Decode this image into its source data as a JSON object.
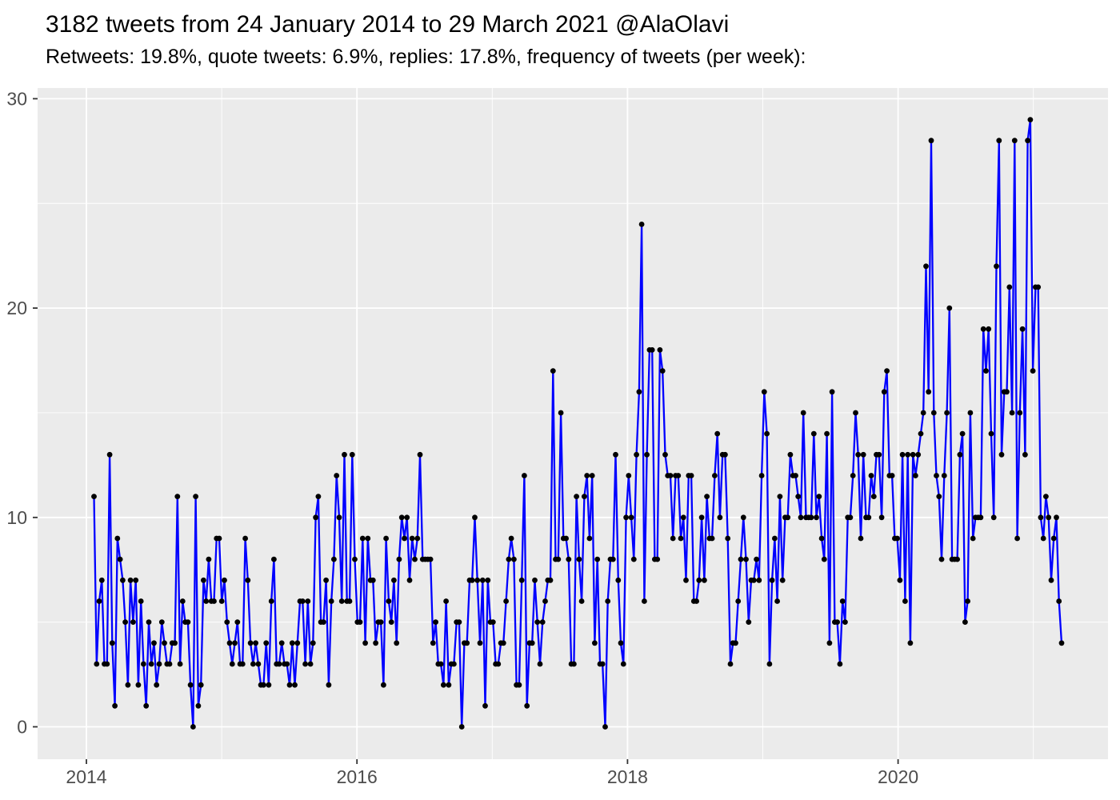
{
  "header": {
    "title": "3182 tweets from 24 January 2014 to 29 March 2021 @AlaOlavi",
    "subtitle": "Retweets: 19.8%, quote tweets: 6.9%, replies: 17.8%, frequency of tweets (per week):"
  },
  "chart_data": {
    "type": "line",
    "title": "3182 tweets from 24 January 2014 to 29 March 2021 @AlaOlavi",
    "subtitle": "Retweets: 19.8%, quote tweets: 6.9%, replies: 17.8%, frequency of tweets (per week):",
    "xlabel": "",
    "ylabel": "",
    "x_axis": {
      "tick_labels": [
        "2014",
        "2016",
        "2018",
        "2020"
      ],
      "tick_years": [
        2014,
        2016,
        2018,
        2020
      ],
      "minor_years": [
        2015,
        2017,
        2019,
        2021
      ],
      "range_years": [
        2013.64,
        2021.56
      ]
    },
    "y_axis": {
      "tick_labels": [
        "0",
        "10",
        "20",
        "30"
      ],
      "tick_values": [
        0,
        10,
        20,
        30
      ],
      "minor_values": [
        5,
        15,
        25
      ],
      "ylim": [
        -1.5,
        31
      ]
    },
    "grid": "on",
    "legend": "none",
    "style": {
      "panel_bg": "#EBEBEB",
      "grid_color": "#FFFFFF",
      "line_color": "#0000FF",
      "point_color": "#000000",
      "tick_label_color": "#4D4D4D",
      "tick_mark_color": "#333333"
    },
    "series": [
      {
        "name": "tweets per week",
        "start": "2014-01-24",
        "end": "2021-03-29",
        "interval": "week",
        "values": [
          11,
          3,
          6,
          7,
          3,
          3,
          13,
          4,
          1,
          9,
          8,
          7,
          5,
          2,
          7,
          5,
          7,
          2,
          6,
          3,
          1,
          5,
          3,
          4,
          2,
          3,
          5,
          4,
          3,
          3,
          4,
          4,
          11,
          3,
          6,
          5,
          5,
          2,
          0,
          11,
          1,
          2,
          7,
          6,
          8,
          6,
          6,
          9,
          9,
          6,
          7,
          5,
          4,
          3,
          4,
          5,
          3,
          3,
          9,
          7,
          4,
          3,
          4,
          3,
          2,
          2,
          4,
          2,
          6,
          8,
          3,
          3,
          4,
          3,
          3,
          2,
          4,
          2,
          4,
          6,
          6,
          3,
          6,
          3,
          4,
          10,
          11,
          5,
          5,
          7,
          2,
          6,
          8,
          12,
          10,
          6,
          13,
          6,
          6,
          13,
          8,
          5,
          5,
          9,
          4,
          9,
          7,
          7,
          4,
          5,
          5,
          2,
          9,
          6,
          5,
          7,
          4,
          8,
          10,
          9,
          10,
          7,
          9,
          8,
          9,
          13,
          8,
          8,
          8,
          8,
          4,
          5,
          3,
          3,
          2,
          6,
          2,
          3,
          3,
          5,
          5,
          0,
          4,
          4,
          7,
          7,
          10,
          7,
          4,
          7,
          1,
          7,
          5,
          5,
          3,
          3,
          4,
          4,
          6,
          8,
          9,
          8,
          2,
          2,
          7,
          12,
          1,
          4,
          4,
          7,
          5,
          3,
          5,
          6,
          7,
          7,
          17,
          8,
          8,
          15,
          9,
          9,
          8,
          3,
          3,
          11,
          8,
          6,
          11,
          12,
          9,
          12,
          4,
          8,
          3,
          3,
          0,
          6,
          8,
          8,
          13,
          7,
          4,
          3,
          10,
          12,
          10,
          8,
          13,
          16,
          24,
          6,
          13,
          18,
          18,
          8,
          8,
          18,
          17,
          13,
          12,
          12,
          9,
          12,
          12,
          9,
          10,
          7,
          12,
          12,
          6,
          6,
          7,
          10,
          7,
          11,
          9,
          9,
          12,
          14,
          10,
          13,
          13,
          9,
          3,
          4,
          4,
          6,
          8,
          10,
          8,
          5,
          7,
          7,
          8,
          7,
          12,
          16,
          14,
          3,
          7,
          9,
          6,
          11,
          7,
          10,
          10,
          13,
          12,
          12,
          11,
          10,
          15,
          10,
          10,
          10,
          14,
          10,
          11,
          9,
          8,
          14,
          4,
          16,
          5,
          5,
          3,
          6,
          5,
          10,
          10,
          12,
          15,
          13,
          9,
          13,
          10,
          10,
          12,
          11,
          13,
          13,
          10,
          16,
          17,
          12,
          12,
          9,
          9,
          7,
          13,
          6,
          13,
          4,
          13,
          12,
          13,
          14,
          15,
          22,
          16,
          28,
          15,
          12,
          11,
          8,
          12,
          15,
          20,
          8,
          8,
          8,
          13,
          14,
          5,
          6,
          15,
          9,
          10,
          10,
          10,
          19,
          17,
          19,
          14,
          10,
          22,
          28,
          13,
          16,
          16,
          21,
          15,
          28,
          9,
          15,
          19,
          13,
          28,
          29,
          17,
          21,
          21,
          10,
          9,
          11,
          10,
          7,
          9,
          10,
          6,
          4
        ]
      }
    ]
  }
}
